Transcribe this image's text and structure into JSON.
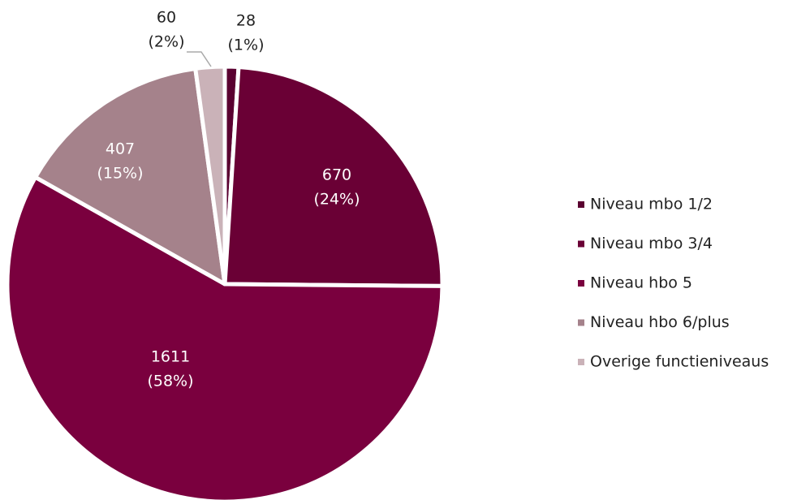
{
  "chart_data": {
    "type": "pie",
    "categories": [
      "Niveau mbo 1/2",
      "Niveau mbo 3/4",
      "Niveau hbo 5",
      "Niveau hbo 6/plus",
      "Overige functieniveaus"
    ],
    "values": [
      28,
      670,
      1611,
      407,
      60
    ],
    "percent_labels": [
      "(1%)",
      "(24%)",
      "(58%)",
      "(15%)",
      "(2%)"
    ],
    "colors": [
      "#5a0030",
      "#6a0035",
      "#7a003e",
      "#a5828b",
      "#cab2b8"
    ],
    "legend": "right"
  }
}
